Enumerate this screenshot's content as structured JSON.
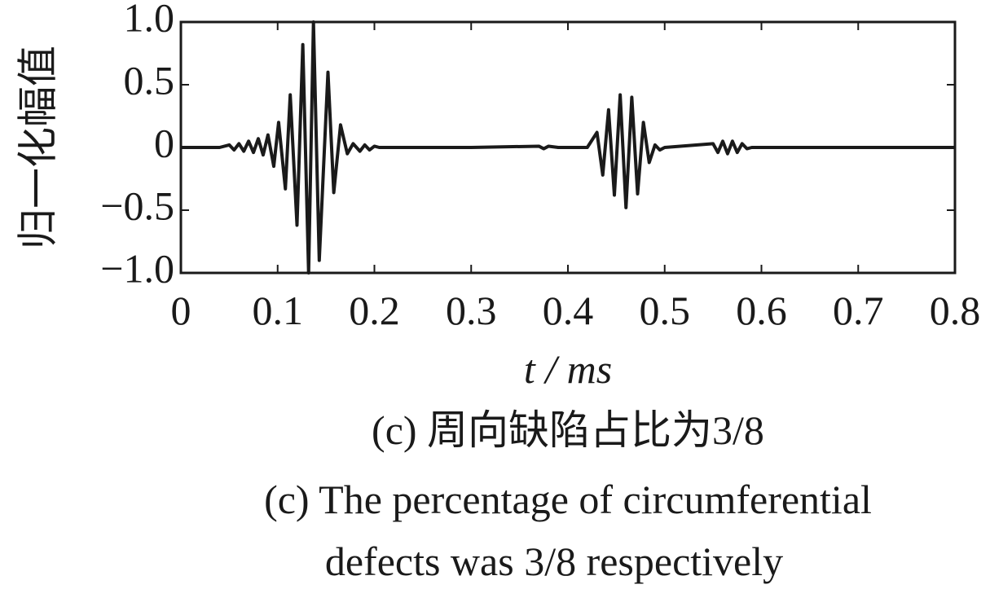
{
  "chart_data": {
    "type": "line",
    "ylabel": "归一化幅值",
    "xlabel": "t / ms",
    "captions": [
      "(c)  周向缺陷占比为3/8",
      "(c)  The percentage of circumferential",
      "defects was 3/8 respectively"
    ],
    "xlim": [
      0,
      0.8
    ],
    "ylim": [
      -1.0,
      1.0
    ],
    "xticks": [
      0,
      0.1,
      0.2,
      0.3,
      0.4,
      0.5,
      0.6,
      0.7,
      0.8
    ],
    "yticks": [
      {
        "value": 1.0,
        "label": "1.0"
      },
      0.5,
      0,
      {
        "value": -0.5,
        "label": "−0.5"
      },
      {
        "value": -1.0,
        "label": "−1.0"
      }
    ],
    "grid": false,
    "series": [
      {
        "color": "#1a1a1a",
        "x": [
          0,
          0.04,
          0.05,
          0.055,
          0.06,
          0.065,
          0.07,
          0.075,
          0.08,
          0.085,
          0.09,
          0.096,
          0.101,
          0.108,
          0.113,
          0.12,
          0.126,
          0.132,
          0.137,
          0.143,
          0.152,
          0.158,
          0.165,
          0.172,
          0.178,
          0.185,
          0.19,
          0.195,
          0.2,
          0.205,
          0.3,
          0.37,
          0.375,
          0.38,
          0.39,
          0.42,
          0.43,
          0.436,
          0.442,
          0.448,
          0.454,
          0.46,
          0.466,
          0.472,
          0.478,
          0.484,
          0.49,
          0.495,
          0.5,
          0.55,
          0.555,
          0.56,
          0.565,
          0.57,
          0.575,
          0.58,
          0.585,
          0.59,
          0.8
        ],
        "values": [
          0,
          0,
          0.02,
          -0.02,
          0.03,
          -0.03,
          0.05,
          -0.04,
          0.07,
          -0.06,
          0.1,
          -0.15,
          0.2,
          -0.33,
          0.42,
          -0.62,
          0.82,
          -1.0,
          1.0,
          -0.9,
          0.6,
          -0.36,
          0.18,
          -0.05,
          0.03,
          -0.03,
          0.02,
          -0.02,
          0.01,
          0,
          0,
          0.01,
          -0.01,
          0.01,
          0,
          0,
          0.12,
          -0.22,
          0.3,
          -0.38,
          0.42,
          -0.48,
          0.4,
          -0.37,
          0.2,
          -0.12,
          0.02,
          -0.02,
          0,
          0.03,
          -0.04,
          0.05,
          -0.05,
          0.05,
          -0.04,
          0.03,
          -0.01,
          0,
          0
        ]
      }
    ]
  }
}
